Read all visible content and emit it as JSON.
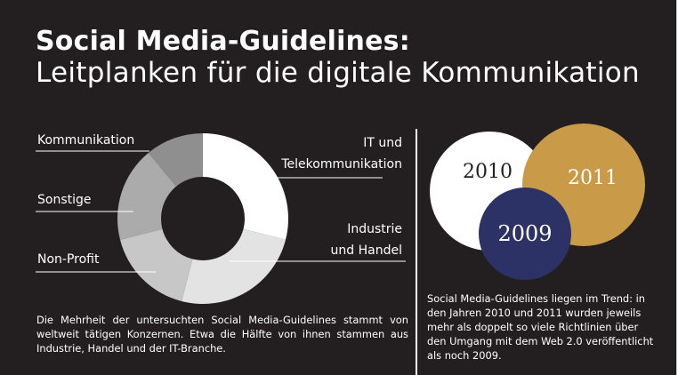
{
  "header": {
    "title": "Social Media-Guidelines:",
    "subtitle": "Leitplanken für die digitale Kommunikation"
  },
  "chart_data": [
    {
      "type": "pie",
      "variant": "donut",
      "categories": [
        "IT und Telekommunikation",
        "Industrie und Handel",
        "Non-Profit",
        "Sonstige",
        "Kommunikation"
      ],
      "label_lines": [
        [
          "IT und",
          "Telekommunikation"
        ],
        [
          "Industrie",
          "und Handel"
        ],
        [
          "Non-Profit"
        ],
        [
          "Sonstige"
        ],
        [
          "Kommunikation"
        ]
      ],
      "values": [
        29,
        25,
        17,
        18,
        11
      ],
      "colors": [
        "#ffffff",
        "#e3e3e3",
        "#c7c7c7",
        "#ababab",
        "#8f8f8f"
      ],
      "caption": "Die Mehrheit der untersuchten Social Media-Guidelines stammt von weltweit tätigen Konzernen. Etwa die Hälfte von ihnen stammen aus Industrie, Handel und der IT-Branche."
    },
    {
      "type": "venn",
      "sets": [
        {
          "label": "2010",
          "color": "#ffffff"
        },
        {
          "label": "2011",
          "color": "#c99a47"
        },
        {
          "label": "2009",
          "color": "#2d3266"
        }
      ],
      "caption": "Social Media-Guidelines liegen im Trend: in den Jahren 2010 und 2011 wurden jeweils mehr als doppelt so viele Richtlinien über den Umgang mit dem Web 2.0 veröffentlicht als noch 2009."
    }
  ]
}
